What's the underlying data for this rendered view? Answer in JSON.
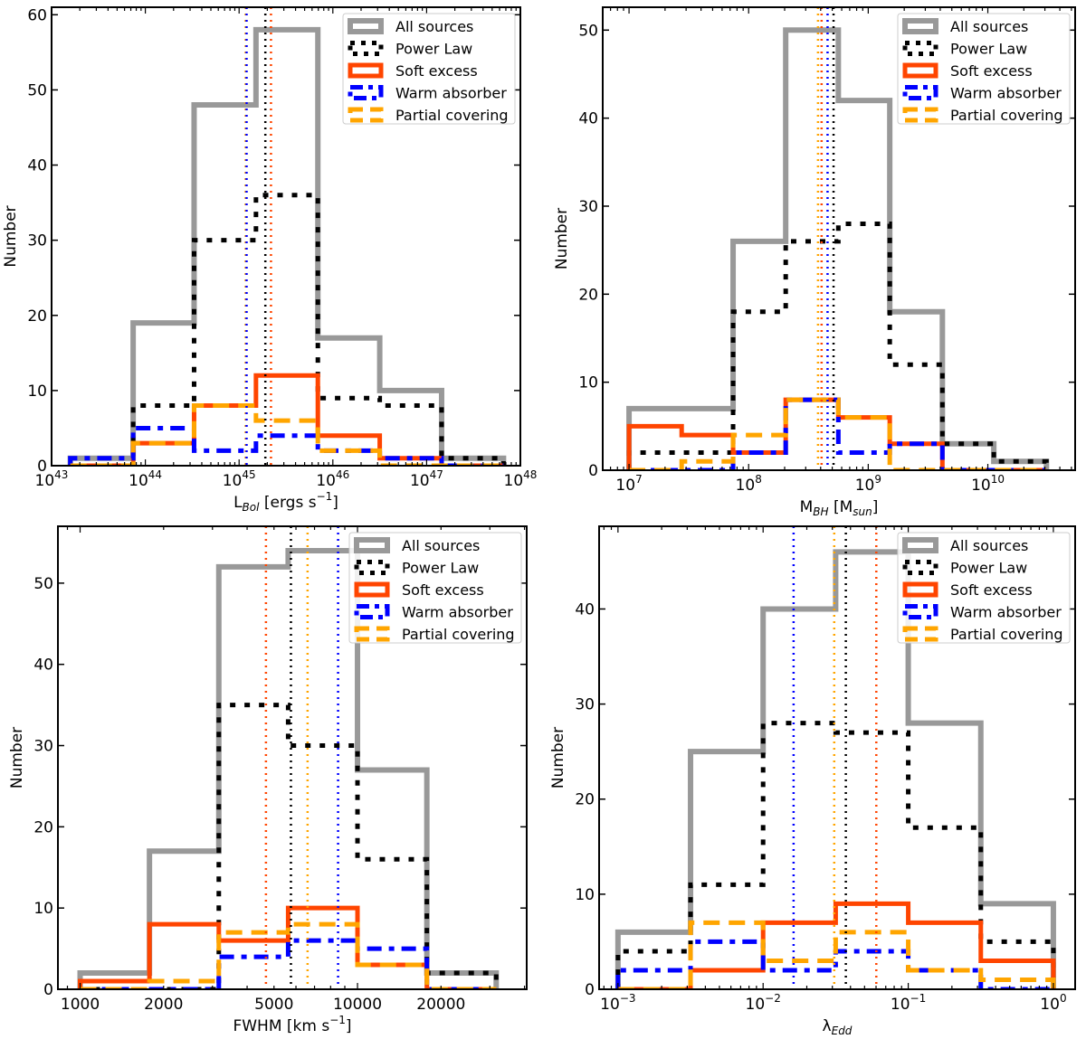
{
  "series_styles": {
    "all": {
      "name": "All sources",
      "color": "#999999",
      "dash": "solid"
    },
    "pl": {
      "name": "Power Law",
      "color": "#000000",
      "dash": "dotted"
    },
    "se": {
      "name": "Soft excess",
      "color": "#ff4500",
      "dash": "solid"
    },
    "wa": {
      "name": "Warm absorber",
      "color": "#0000ff",
      "dash": "dashdot"
    },
    "pc": {
      "name": "Partial covering",
      "color": "#ffa500",
      "dash": "dashed"
    }
  },
  "chart_data": [
    {
      "type": "bar",
      "histtype": "step",
      "xscale": "log",
      "xlabel": "L_Bol [ergs s^-1]",
      "xlabel_main": "L",
      "xlabel_sub": "Bol",
      "xlabel_rest": " [ergs s",
      "xlabel_sup": "−1",
      "xlabel_end": "]",
      "ylabel": "Number",
      "xlim_log10": [
        43,
        48
      ],
      "ylim": [
        0,
        61
      ],
      "xticks": [
        {
          "v": 43,
          "base": "10",
          "exp": "43"
        },
        {
          "v": 44,
          "base": "10",
          "exp": "44"
        },
        {
          "v": 45,
          "base": "10",
          "exp": "45"
        },
        {
          "v": 46,
          "base": "10",
          "exp": "46"
        },
        {
          "v": 47,
          "base": "10",
          "exp": "47"
        },
        {
          "v": 48,
          "base": "10",
          "exp": "48"
        }
      ],
      "yticks": [
        0,
        10,
        20,
        30,
        40,
        50,
        60
      ],
      "legend_position": "top-right",
      "bin_edges_log10": [
        43.2,
        43.87,
        44.52,
        45.18,
        45.84,
        46.5,
        47.16,
        47.82
      ],
      "series": [
        {
          "key": "all",
          "name": "All sources",
          "values": [
            1,
            19,
            48,
            58,
            17,
            10,
            1
          ]
        },
        {
          "key": "pl",
          "name": "Power Law",
          "values": [
            0,
            8,
            30,
            36,
            9,
            8,
            1
          ]
        },
        {
          "key": "se",
          "name": "Soft excess",
          "values": [
            0,
            3,
            8,
            12,
            4,
            1,
            0
          ]
        },
        {
          "key": "wa",
          "name": "Warm absorber",
          "values": [
            1,
            5,
            2,
            4,
            2,
            1,
            0
          ]
        },
        {
          "key": "pc",
          "name": "Partial covering",
          "values": [
            0,
            3,
            8,
            6,
            2,
            0,
            0
          ]
        }
      ],
      "medians_log10": [
        {
          "key": "pc",
          "value": 45.07
        },
        {
          "key": "wa",
          "value": 45.08
        },
        {
          "key": "pl",
          "value": 45.28
        },
        {
          "key": "se",
          "value": 45.34
        }
      ]
    },
    {
      "type": "bar",
      "histtype": "step",
      "xscale": "log",
      "xlabel": "M_BH [M_sun]",
      "xlabel_main": "M",
      "xlabel_sub": "BH",
      "xlabel_rest": " [M",
      "xlabel_sub2": "sun",
      "xlabel_end": "]",
      "ylabel": "Number",
      "xlim_log10": [
        6.78,
        10.73
      ],
      "ylim": [
        0,
        52.6
      ],
      "xticks": [
        {
          "v": 7,
          "base": "10",
          "exp": "7"
        },
        {
          "v": 8,
          "base": "10",
          "exp": "8"
        },
        {
          "v": 9,
          "base": "10",
          "exp": "9"
        },
        {
          "v": 10,
          "base": "10",
          "exp": "10"
        }
      ],
      "yticks": [
        0,
        10,
        20,
        30,
        40,
        50
      ],
      "legend_position": "top-right",
      "bin_edges_log10": [
        7.0,
        7.44,
        7.87,
        8.31,
        8.75,
        9.18,
        9.62,
        10.05,
        10.49
      ],
      "series": [
        {
          "key": "all",
          "name": "All sources",
          "values": [
            7,
            7,
            26,
            50,
            42,
            18,
            3,
            1
          ]
        },
        {
          "key": "pl",
          "name": "Power Law",
          "values": [
            2,
            2,
            18,
            26,
            28,
            12,
            3,
            1
          ]
        },
        {
          "key": "se",
          "name": "Soft excess",
          "values": [
            5,
            4,
            2,
            8,
            6,
            3,
            0,
            0
          ]
        },
        {
          "key": "wa",
          "name": "Warm absorber",
          "values": [
            0,
            0,
            2,
            8,
            2,
            3,
            0,
            0
          ]
        },
        {
          "key": "pc",
          "name": "Partial covering",
          "values": [
            0,
            1,
            4,
            8,
            6,
            0,
            0,
            0
          ]
        }
      ],
      "medians_log10": [
        {
          "key": "pc",
          "value": 8.58
        },
        {
          "key": "se",
          "value": 8.61
        },
        {
          "key": "wa",
          "value": 8.66
        },
        {
          "key": "pl",
          "value": 8.71
        }
      ]
    },
    {
      "type": "bar",
      "histtype": "step",
      "xscale": "log",
      "xlabel": "FWHM [km s^-1]",
      "xlabel_main": "FWHM [km s",
      "xlabel_sup": "−1",
      "xlabel_end": "]",
      "ylabel": "Number",
      "xlim_log10": [
        2.92,
        4.61
      ],
      "ylim": [
        0,
        57
      ],
      "xticks": [
        {
          "v": 3,
          "label": "1000"
        },
        {
          "v": 3.30103,
          "label": "2000"
        },
        {
          "v": 3.69897,
          "label": "5000"
        },
        {
          "v": 4,
          "label": "10000"
        },
        {
          "v": 4.30103,
          "label": "20000"
        }
      ],
      "yticks": [
        0,
        10,
        20,
        30,
        40,
        50
      ],
      "legend_position": "top-right",
      "bin_edges_log10": [
        3.0,
        3.25,
        3.5,
        3.75,
        4.0,
        4.25,
        4.5
      ],
      "series": [
        {
          "key": "all",
          "name": "All sources",
          "values": [
            2,
            17,
            52,
            54,
            27,
            2
          ]
        },
        {
          "key": "pl",
          "name": "Power Law",
          "values": [
            0,
            0,
            35,
            30,
            16,
            2
          ]
        },
        {
          "key": "se",
          "name": "Soft excess",
          "values": [
            1,
            8,
            6,
            10,
            3,
            0
          ]
        },
        {
          "key": "wa",
          "name": "Warm absorber",
          "values": [
            0,
            0,
            4,
            6,
            5,
            0
          ]
        },
        {
          "key": "pc",
          "name": "Partial covering",
          "values": [
            0,
            1,
            7,
            8,
            3,
            0
          ]
        }
      ],
      "medians_log10": [
        {
          "key": "se",
          "value": 3.67
        },
        {
          "key": "pl",
          "value": 3.76
        },
        {
          "key": "pc",
          "value": 3.82
        },
        {
          "key": "wa",
          "value": 3.93
        }
      ]
    },
    {
      "type": "bar",
      "histtype": "step",
      "xscale": "log",
      "xlabel": "λ_Edd",
      "xlabel_main": "λ",
      "xlabel_sub": "Edd",
      "ylabel": "Number",
      "xlim_log10": [
        -3.13,
        0.15
      ],
      "ylim": [
        0,
        48.7
      ],
      "xticks": [
        {
          "v": -3,
          "base": "10",
          "exp": "−3"
        },
        {
          "v": -2,
          "base": "10",
          "exp": "−2"
        },
        {
          "v": -1,
          "base": "10",
          "exp": "−1"
        },
        {
          "v": 0,
          "base": "10",
          "exp": "0"
        }
      ],
      "yticks": [
        0,
        10,
        20,
        30,
        40
      ],
      "legend_position": "top-right",
      "bin_edges_log10": [
        -3.0,
        -2.5,
        -2.0,
        -1.5,
        -1.0,
        -0.5,
        0.0
      ],
      "series": [
        {
          "key": "all",
          "name": "All sources",
          "values": [
            6,
            25,
            40,
            46,
            28,
            9
          ]
        },
        {
          "key": "pl",
          "name": "Power Law",
          "values": [
            4,
            11,
            28,
            27,
            17,
            5
          ]
        },
        {
          "key": "se",
          "name": "Soft excess",
          "values": [
            0,
            2,
            7,
            9,
            7,
            3
          ]
        },
        {
          "key": "wa",
          "name": "Warm absorber",
          "values": [
            2,
            5,
            2,
            4,
            2,
            0
          ]
        },
        {
          "key": "pc",
          "name": "Partial covering",
          "values": [
            0,
            7,
            3,
            6,
            2,
            1
          ]
        }
      ],
      "medians_log10": [
        {
          "key": "wa",
          "value": -1.79
        },
        {
          "key": "pc",
          "value": -1.51
        },
        {
          "key": "pl",
          "value": -1.43
        },
        {
          "key": "se",
          "value": -1.22
        }
      ]
    }
  ]
}
